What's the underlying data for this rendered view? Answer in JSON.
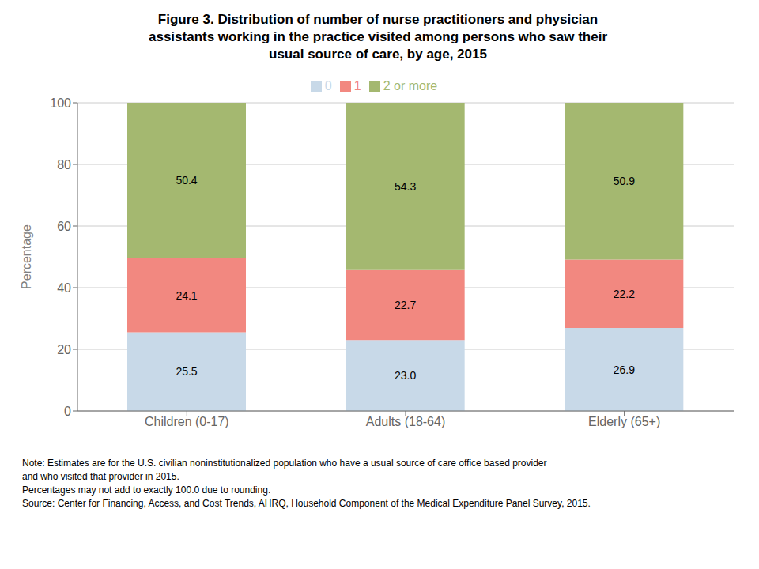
{
  "chart_data": {
    "type": "bar",
    "title": "Figure 3. Distribution of number of nurse practitioners and physician\nassistants working in the practice visited among persons who saw their\nusual source of care, by age, 2015",
    "categories": [
      "Children (0-17)",
      "Adults (18-64)",
      "Elderly (65+)"
    ],
    "series": [
      {
        "name": "0",
        "color": "#c8d9e8",
        "values": [
          25.5,
          23.0,
          26.9
        ],
        "value_labels": [
          "25.5",
          "23.0",
          "26.9"
        ]
      },
      {
        "name": "1",
        "color": "#f28880",
        "values": [
          24.1,
          22.7,
          22.2
        ],
        "value_labels": [
          "24.1",
          "22.7",
          "22.2"
        ]
      },
      {
        "name": "2 or more",
        "color": "#a4b870",
        "values": [
          50.4,
          54.3,
          50.9
        ],
        "value_labels": [
          "50.4",
          "54.3",
          "50.9"
        ]
      }
    ],
    "stacked": true,
    "data_labels": true,
    "ylabel": "Percentage",
    "ylim": [
      0,
      100
    ],
    "yticks": [
      0,
      20,
      40,
      60,
      80,
      100
    ],
    "grid": true,
    "legend": "top",
    "annotations": [
      "Note: Estimates are for the U.S. civilian noninstitutionalized population who have a usual source of care office based provider",
      "and who visited that provider in 2015.",
      "Percentages may not add to exactly 100.0 due to rounding.",
      "Source: Center for Financing, Access, and Cost Trends, AHRQ, Household Component of the Medical Expenditure Panel Survey, 2015."
    ]
  }
}
